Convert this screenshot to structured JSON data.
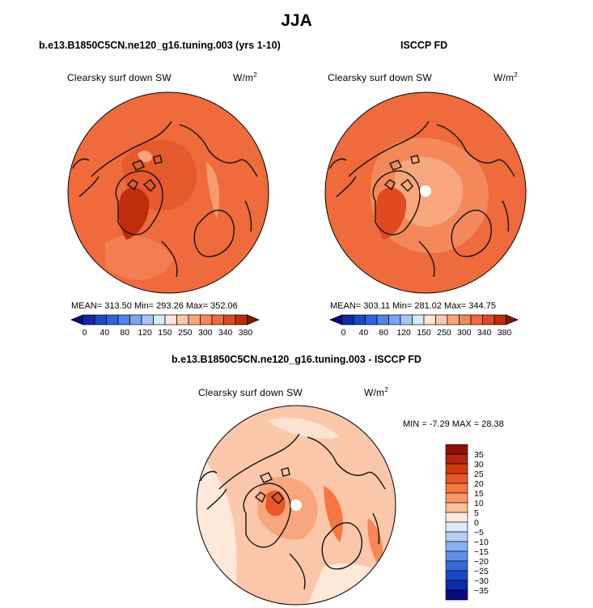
{
  "page": {
    "title": "JJA",
    "panel_model_title": "b.e13.B1850C5CN.ne120_g16.tuning.003 (yrs 1-10)",
    "panel_obs_title": "ISCCP FD",
    "panel_diff_title": "b.e13.B1850C5CN.ne120_g16.tuning.003 - ISCCP FD"
  },
  "model": {
    "variable": "Clearsky surf down SW",
    "units": "W/m",
    "units_exp": "2",
    "stats_text": "MEAN=  313.50    Min=  293.26    Max=  352.06"
  },
  "obs": {
    "variable": "Clearsky surf down SW",
    "units": "W/m",
    "units_exp": "2",
    "stats_text": "MEAN=  303.11    Min=  281.02    Max=  344.75"
  },
  "diff": {
    "variable": "Clearsky surf down SW",
    "units": "W/m",
    "units_exp": "2",
    "stats_text": "MIN =   -7.29  MAX =   28.38"
  },
  "colorbar_abs": {
    "colors": [
      "#0a0a80",
      "#0d2aa6",
      "#1a47c8",
      "#2e63dd",
      "#5283e8",
      "#7ba3ef",
      "#a9c5f5",
      "#dbe8fb",
      "#fde6d8",
      "#fbc7aa",
      "#f8a67e",
      "#f4885b",
      "#ef6a3c",
      "#e04a20",
      "#c02c0c",
      "#8e1204"
    ],
    "labels": [
      "0",
      "40",
      "80",
      "120",
      "150",
      "250",
      "300",
      "340",
      "380"
    ]
  },
  "colorbar_diff": {
    "colors": [
      "#8e1204",
      "#b4240a",
      "#d43a10",
      "#ea5624",
      "#f57741",
      "#f79868",
      "#fbbf9c",
      "#fde8da",
      "#dceafb",
      "#b5cdf5",
      "#8ab0ef",
      "#5e8de6",
      "#3768da",
      "#1d46c8",
      "#0e2ca8",
      "#0a0a80"
    ],
    "labels": [
      "35",
      "30",
      "25",
      "20",
      "15",
      "10",
      "5",
      "0",
      "−5",
      "−10",
      "−15",
      "−20",
      "−25",
      "−30",
      "−35"
    ]
  }
}
